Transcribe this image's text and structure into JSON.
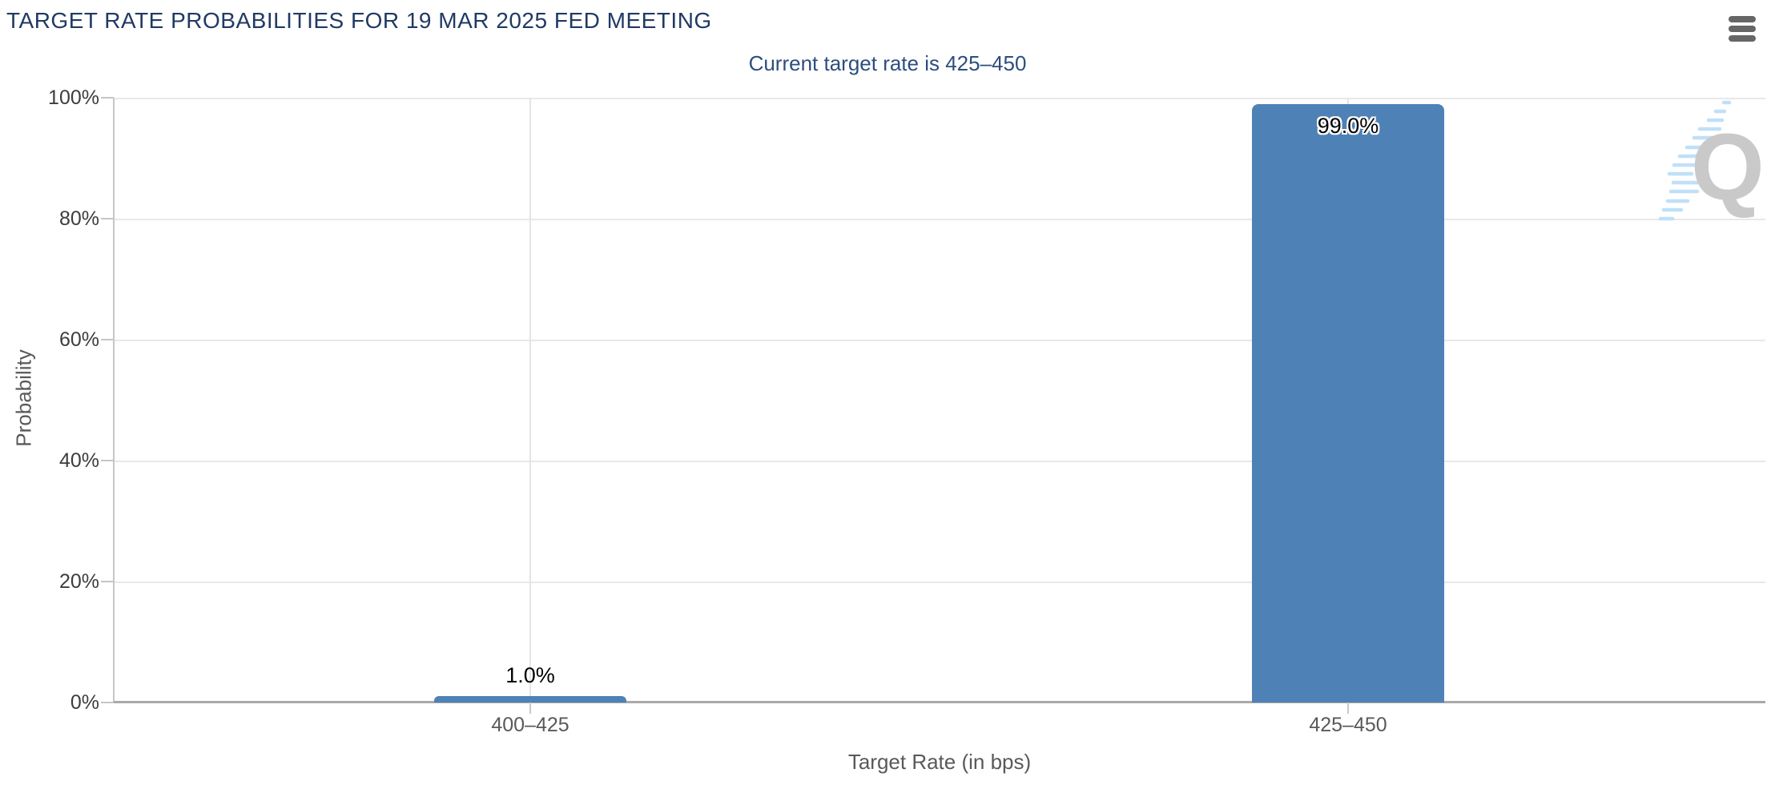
{
  "header": {
    "title": "TARGET RATE PROBABILITIES FOR 19 MAR 2025 FED MEETING",
    "menu_icon": "hamburger-menu-icon"
  },
  "chart": {
    "subtitle": "Current target rate is 425–450",
    "y_axis": {
      "label": "Probability",
      "ticks": [
        "0%",
        "20%",
        "40%",
        "60%",
        "80%",
        "100%"
      ]
    },
    "x_axis": {
      "label": "Target Rate (in bps)",
      "categories": [
        "400–425",
        "425–450"
      ]
    },
    "bar_labels": [
      "1.0%",
      "99.0%"
    ],
    "watermark": {
      "letter": "Q",
      "icon": "quikstrike-logo-watermark"
    }
  },
  "colors": {
    "bar": "#4e81b6",
    "title_text": "#203a64",
    "subtitle_text": "#2d4e7e",
    "axis_text": "#595959",
    "tick_text": "#3d3d3d",
    "gridline": "#e8e8e8",
    "baseline": "#a9a9a9",
    "watermark_gray": "#c9c9c9",
    "watermark_blue": "#bfe0f8"
  },
  "chart_data": {
    "type": "bar",
    "title": "TARGET RATE PROBABILITIES FOR 19 MAR 2025 FED MEETING",
    "subtitle": "Current target rate is 425–450",
    "categories": [
      "400–425",
      "425–450"
    ],
    "values": [
      1.0,
      99.0
    ],
    "value_labels": [
      "1.0%",
      "99.0%"
    ],
    "xlabel": "Target Rate (in bps)",
    "ylabel": "Probability",
    "ylim": [
      0,
      100
    ],
    "y_tick_labels": [
      "0%",
      "20%",
      "40%",
      "60%",
      "80%",
      "100%"
    ],
    "bar_color": "#4e81b6",
    "grid": true,
    "legend": false
  }
}
